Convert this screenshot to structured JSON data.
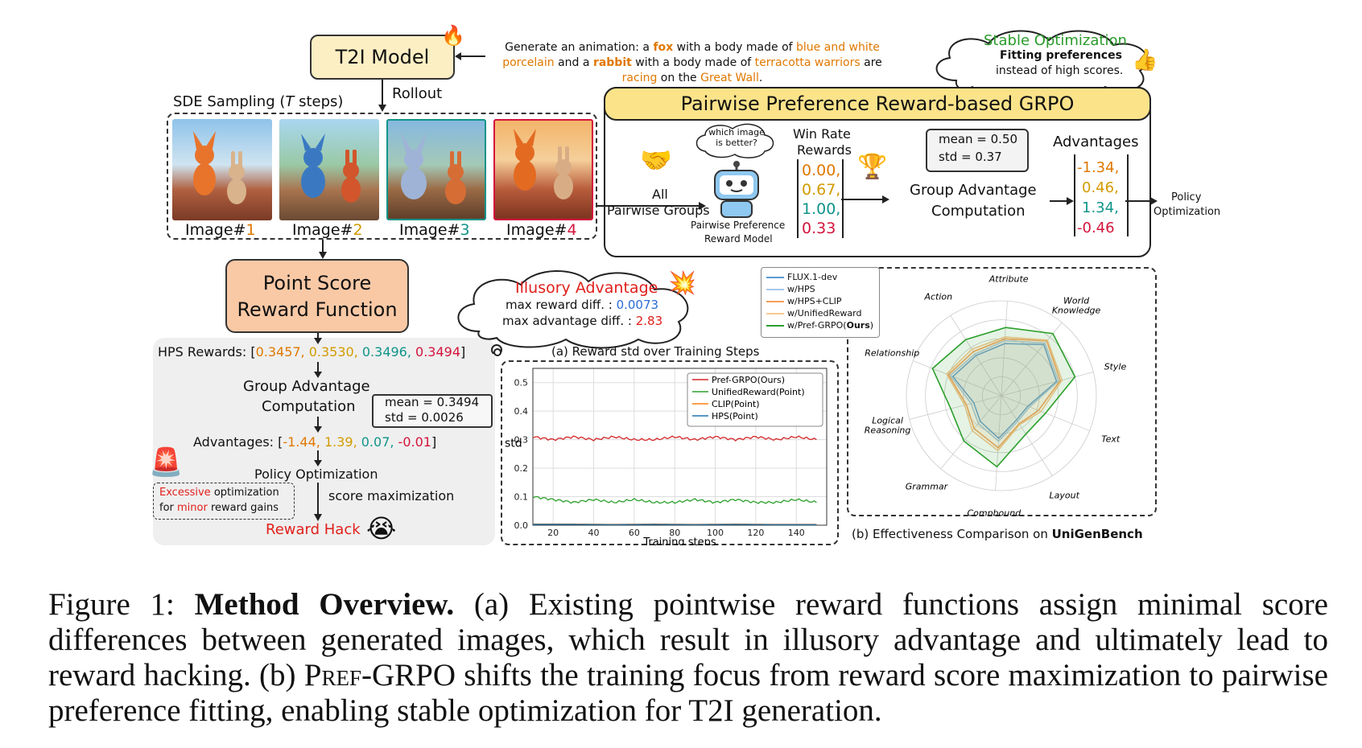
{
  "t2i": {
    "title": "T2I Model",
    "rollout": "Rollout",
    "sde": "SDE Sampling (",
    "sde_t": "T",
    "sde_end": " steps)"
  },
  "prompt": {
    "p1": "Generate an animation: a ",
    "fox": "fox",
    "p2": " with a body made of ",
    "porc": "blue and white",
    "porc2": "porcelain",
    "p3": " and a ",
    "rabbit": "rabbit",
    "p4": " with a body made of ",
    "terra": "terracotta warriors",
    "p5": " are",
    "racing": "racing",
    "p6": " on the ",
    "wall": "Great Wall",
    "p7": "."
  },
  "images": [
    {
      "prefix": "Image#",
      "num": "1",
      "color": "#e07800"
    },
    {
      "prefix": "Image#",
      "num": "2",
      "color": "#d39b00"
    },
    {
      "prefix": "Image#",
      "num": "3",
      "color": "#10948a"
    },
    {
      "prefix": "Image#",
      "num": "4",
      "color": "#d4143c"
    }
  ],
  "stable": {
    "title": "Stable Optimization",
    "l1": "Fitting preferences",
    "l2": "instead of high scores."
  },
  "pref": {
    "title": "Pairwise Preference Reward-based GRPO",
    "bubble": "which image is better?",
    "all": "All",
    "pairwise": "Pairwise Groups",
    "model": "Pairwise Preference",
    "model2": "Reward Model",
    "winrate": "Win Rate",
    "rewards_lbl": "Rewards",
    "rewards": [
      "0.00,",
      "0.67,",
      "1.00,",
      "0.33"
    ],
    "mean": "mean = 0.50",
    "std": "std = 0.37",
    "group": "Group Advantage",
    "comp": "Computation",
    "adv_lbl": "Advantages",
    "adv": [
      "-1.34,",
      "0.46,",
      "1.34,",
      "-0.46"
    ],
    "policy": "Policy",
    "opt": "Optimization"
  },
  "point": {
    "title1": "Point Score",
    "title2": "Reward Function",
    "hps_lbl": "HPS Rewards: [",
    "hps": [
      "0.3457, ",
      "0.3530, ",
      "0.3496, ",
      "0.3494"
    ],
    "hps_end": "]",
    "group": "Group Advantage",
    "comp": "Computation",
    "mean": "mean = 0.3494",
    "std": "std = 0.0026",
    "adv_lbl": "Advantages: [",
    "adv": [
      "-1.44, ",
      "1.39, ",
      "0.07, ",
      "-0.01"
    ],
    "adv_end": "]",
    "policy": "Policy Optimization",
    "excessive": "Excessive",
    "opt_text": " optimization",
    "for": "for ",
    "minor": "minor",
    "gains": " reward gains",
    "score_max": "score maximization",
    "hack": "Reward Hack"
  },
  "illusory": {
    "title": "Illusory Advantage",
    "l1": "max reward diff. : ",
    "v1": "0.0073",
    "l2": "max advantage diff. : ",
    "v2": "2.83"
  },
  "chart_a": {
    "caption": "(a) Reward std over Training Steps"
  },
  "chart_b": {
    "caption": "(b) Effectiveness Comparison on ",
    "caption_b": "UniGenBench"
  },
  "chart_data": [
    {
      "type": "line",
      "title": "(a) Reward std over Training Steps",
      "xlabel": "Training steps",
      "ylabel": "std",
      "xlim": [
        10,
        155
      ],
      "ylim": [
        0,
        0.55
      ],
      "xticks": [
        20,
        40,
        60,
        80,
        100,
        120,
        140
      ],
      "yticks": [
        0.0,
        0.1,
        0.2,
        0.3,
        0.4,
        0.5
      ],
      "grid": true,
      "legend": "top-right",
      "series": [
        {
          "name": "Pref-GRPO(Ours)",
          "color": "#d62728",
          "x": [
            10,
            20,
            30,
            40,
            50,
            60,
            70,
            80,
            90,
            100,
            110,
            120,
            130,
            140,
            150
          ],
          "values": [
            0.31,
            0.3,
            0.31,
            0.3,
            0.31,
            0.3,
            0.3,
            0.31,
            0.3,
            0.31,
            0.3,
            0.31,
            0.3,
            0.31,
            0.3
          ]
        },
        {
          "name": "UnifiedReward(Point)",
          "color": "#2ca02c",
          "x": [
            10,
            20,
            30,
            40,
            50,
            60,
            70,
            80,
            90,
            100,
            110,
            120,
            130,
            140,
            150
          ],
          "values": [
            0.1,
            0.09,
            0.08,
            0.09,
            0.08,
            0.09,
            0.08,
            0.08,
            0.09,
            0.08,
            0.09,
            0.08,
            0.08,
            0.09,
            0.08
          ]
        },
        {
          "name": "CLIP(Point)",
          "color": "#ff7f0e",
          "x": [
            10,
            30,
            50,
            70,
            90,
            110,
            130,
            150
          ],
          "values": [
            0.004,
            0.004,
            0.003,
            0.004,
            0.003,
            0.004,
            0.003,
            0.003
          ]
        },
        {
          "name": "HPS(Point)",
          "color": "#1f77b4",
          "x": [
            10,
            30,
            50,
            70,
            90,
            110,
            130,
            150
          ],
          "values": [
            0.003,
            0.003,
            0.002,
            0.003,
            0.002,
            0.003,
            0.002,
            0.002
          ]
        }
      ]
    },
    {
      "type": "radar",
      "title": "(b) Effectiveness Comparison on UniGenBench",
      "categories": [
        "Attribute",
        "World Knowledge",
        "Style",
        "Text",
        "Layout",
        "Compbound",
        "Grammar",
        "Logical Reasoning",
        "Relationship",
        "Action"
      ],
      "legend": "top-left",
      "series": [
        {
          "name": "FLUX.1-dev",
          "color": "#5b9bd5",
          "values": [
            0.55,
            0.7,
            0.6,
            0.3,
            0.3,
            0.45,
            0.35,
            0.3,
            0.55,
            0.5
          ]
        },
        {
          "name": "w/HPS",
          "color": "#a6c8e8",
          "values": [
            0.58,
            0.72,
            0.62,
            0.32,
            0.32,
            0.48,
            0.38,
            0.33,
            0.58,
            0.52
          ]
        },
        {
          "name": "w/HPS+CLIP",
          "color": "#f5a15a",
          "values": [
            0.6,
            0.75,
            0.64,
            0.42,
            0.35,
            0.55,
            0.45,
            0.38,
            0.6,
            0.55
          ]
        },
        {
          "name": "w/UnifiedReward",
          "color": "#f8c890",
          "values": [
            0.62,
            0.76,
            0.66,
            0.45,
            0.36,
            0.58,
            0.48,
            0.4,
            0.62,
            0.58
          ]
        },
        {
          "name": "w/Pref-GRPO(Ours)",
          "color": "#2ca02c",
          "values": [
            0.72,
            0.85,
            0.8,
            0.5,
            0.48,
            0.75,
            0.62,
            0.55,
            0.78,
            0.7
          ]
        }
      ]
    }
  ],
  "legend_a": [
    "Pref-GRPO(",
    "Ours",
    ")",
    "UnifiedReward(Point)",
    "CLIP(Point)",
    "HPS(Point)"
  ],
  "legend_b": [
    "FLUX.1-dev",
    "w/HPS",
    "w/HPS+CLIP",
    "w/UnifiedReward",
    "w/Pref-GRPO(",
    "Ours",
    ")"
  ],
  "caption": {
    "fig": "Figure 1: ",
    "bold": "Method Overview.",
    "t1": " (a) Existing pointwise reward functions assign minimal score differences between generated images, which result in illusory advantage and ultimately lead to reward hacking. (b) ",
    "pref": "Pref",
    "t2": "-GRPO shifts the training focus from reward score maximization to pairwise preference fitting, enabling stable optimization for T2I generation."
  }
}
